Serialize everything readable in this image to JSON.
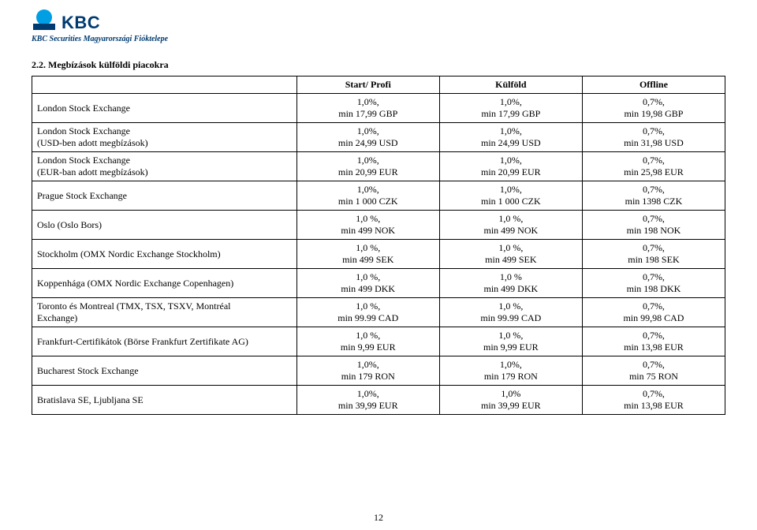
{
  "brand": {
    "name": "KBC",
    "logo_color_primary": "#009fe3",
    "logo_color_base": "#003b70",
    "subsidiary_line": "KBC Securities Magyarországi Fióktelepe"
  },
  "heading": "2.2. Megbízások külföldi piacokra",
  "page_number": "12",
  "columns": {
    "name": "",
    "c1": "Start/ Profi",
    "c2": "Külföld",
    "c3": "Offline"
  },
  "rows": [
    {
      "name_lines": [
        "London Stock Exchange"
      ],
      "c1": [
        "1,0%,",
        "min 17,99 GBP"
      ],
      "c2": [
        "1,0%,",
        "min 17,99 GBP"
      ],
      "c3": [
        "0,7%,",
        "min 19,98 GBP"
      ]
    },
    {
      "name_lines": [
        "London Stock Exchange",
        "(USD-ben adott megbízások)"
      ],
      "c1": [
        "1,0%,",
        "min 24,99 USD"
      ],
      "c2": [
        "1,0%,",
        "min 24,99 USD"
      ],
      "c3": [
        "0,7%,",
        "min 31,98 USD"
      ]
    },
    {
      "name_lines": [
        "London Stock Exchange",
        "(EUR-ban adott megbízások)"
      ],
      "c1": [
        "1,0%,",
        "min 20,99 EUR"
      ],
      "c2": [
        "1,0%,",
        "min 20,99 EUR"
      ],
      "c3": [
        "0,7%,",
        "min 25,98 EUR"
      ]
    },
    {
      "name_lines": [
        "Prague Stock Exchange"
      ],
      "c1": [
        "1,0%,",
        "min 1 000 CZK"
      ],
      "c2": [
        "1,0%,",
        "min 1 000 CZK"
      ],
      "c3": [
        "0,7%,",
        "min 1398 CZK"
      ]
    },
    {
      "name_lines": [
        "Oslo (Oslo Bors)"
      ],
      "c1": [
        "1,0 %,",
        "min 499 NOK"
      ],
      "c2": [
        "1,0 %,",
        "min 499 NOK"
      ],
      "c3": [
        "0,7%,",
        "min 198 NOK"
      ]
    },
    {
      "name_lines": [
        "Stockholm (OMX Nordic Exchange Stockholm)"
      ],
      "c1": [
        "1,0 %,",
        "min 499 SEK"
      ],
      "c2": [
        "1,0 %,",
        "min 499 SEK"
      ],
      "c3": [
        "0,7%,",
        "min 198 SEK"
      ]
    },
    {
      "name_lines": [
        "Koppenhága (OMX Nordic Exchange Copenhagen)"
      ],
      "c1": [
        "1,0 %,",
        "min 499 DKK"
      ],
      "c2": [
        "1,0 %",
        "min 499 DKK"
      ],
      "c3": [
        "0,7%,",
        "min 198 DKK"
      ]
    },
    {
      "name_lines": [
        "Toronto és Montreal (TMX, TSX, TSXV, Montréal",
        "Exchange)"
      ],
      "c1": [
        "1,0 %,",
        "min 99.99 CAD"
      ],
      "c2": [
        "1,0 %,",
        "min 99.99 CAD"
      ],
      "c3": [
        "0,7%,",
        "min 99,98 CAD"
      ]
    },
    {
      "name_lines": [
        "Frankfurt-Certifikátok (Börse Frankfurt Zertifikate AG)"
      ],
      "c1": [
        "1,0 %,",
        "min 9,99 EUR"
      ],
      "c2": [
        "1,0 %,",
        "min 9,99 EUR"
      ],
      "c3": [
        "0,7%,",
        "min 13,98 EUR"
      ]
    },
    {
      "name_lines": [
        "Bucharest Stock Exchange"
      ],
      "c1": [
        "1,0%,",
        "min 179 RON"
      ],
      "c2": [
        "1,0%,",
        "min 179 RON"
      ],
      "c3": [
        "0,7%,",
        "min 75 RON"
      ]
    },
    {
      "name_lines": [
        "Bratislava SE, Ljubljana SE"
      ],
      "c1": [
        "1,0%,",
        "min 39,99 EUR"
      ],
      "c2": [
        "1,0%",
        "min 39,99 EUR"
      ],
      "c3": [
        "0,7%,",
        "min 13,98 EUR"
      ]
    }
  ]
}
